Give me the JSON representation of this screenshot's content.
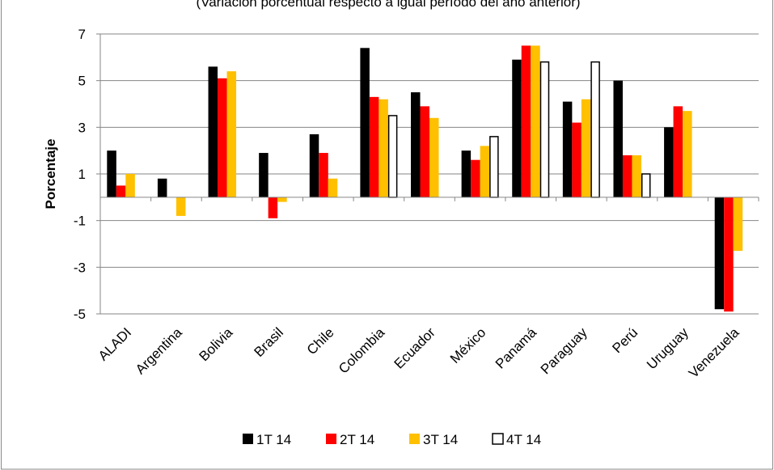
{
  "chart_data": {
    "type": "bar",
    "subtitle": "(Variación porcentual respecto a igual período del año anterior)",
    "ylabel": "Porcentaje",
    "xlabel": "",
    "ylim": [
      -5,
      7
    ],
    "yticks": [
      -5,
      -3,
      -1,
      1,
      3,
      5,
      7
    ],
    "grid": true,
    "legend_position": "bottom",
    "categories": [
      "ALADI",
      "Argentina",
      "Bolivia",
      "Brasil",
      "Chile",
      "Colombia",
      "Ecuador",
      "México",
      "Panamá",
      "Paraguay",
      "Perú",
      "Uruguay",
      "Venezuela"
    ],
    "series": [
      {
        "name": "1T 14",
        "color": "#000000",
        "values": [
          2.0,
          0.8,
          5.6,
          1.9,
          2.7,
          6.4,
          4.5,
          2.0,
          5.9,
          4.1,
          5.0,
          3.0,
          -4.8
        ]
      },
      {
        "name": "2T 14",
        "color": "#ff0000",
        "values": [
          0.5,
          null,
          5.1,
          -0.9,
          1.9,
          4.3,
          3.9,
          1.6,
          6.5,
          3.2,
          1.8,
          3.9,
          -4.9
        ]
      },
      {
        "name": "3T 14",
        "color": "#ffc000",
        "values": [
          1.0,
          -0.8,
          5.4,
          -0.2,
          0.8,
          4.2,
          3.4,
          2.2,
          6.5,
          4.2,
          1.8,
          3.7,
          -2.3
        ]
      },
      {
        "name": "4T 14",
        "color": "#ffffff",
        "outline": "#000000",
        "values": [
          null,
          null,
          null,
          null,
          null,
          3.5,
          null,
          2.6,
          5.8,
          5.8,
          1.0,
          null,
          null
        ]
      }
    ]
  }
}
